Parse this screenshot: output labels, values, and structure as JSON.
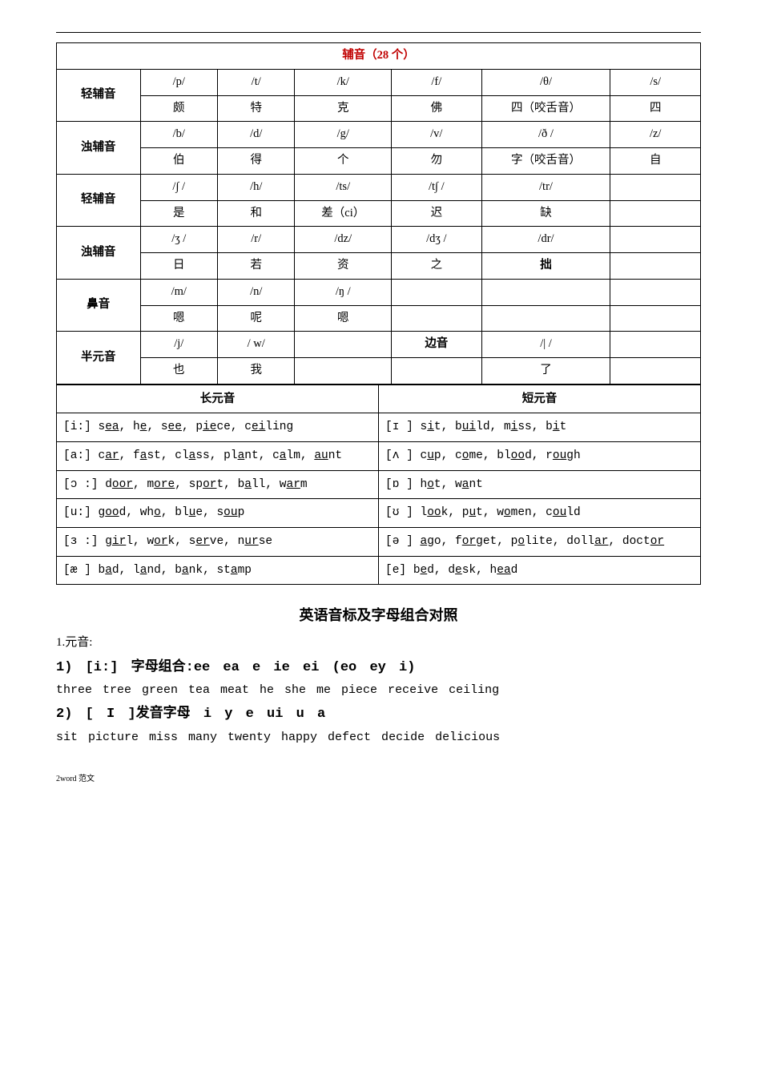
{
  "colors": {
    "text": "#000000",
    "accent": "#c00000",
    "border": "#000000",
    "background": "#ffffff"
  },
  "consonants": {
    "title": "辅音（28 个）",
    "rows": [
      {
        "label": "轻辅音",
        "ipa": [
          "/p/",
          "/t/",
          "/k/",
          "/f/",
          "/θ/",
          "/s/"
        ],
        "cn": [
          "颇",
          "特",
          "克",
          "佛",
          "四（咬舌音）",
          "四"
        ]
      },
      {
        "label": "浊辅音",
        "ipa": [
          "/b/",
          "/d/",
          "/g/",
          "/v/",
          "/ð /",
          "/z/"
        ],
        "cn": [
          "伯",
          "得",
          "个",
          "勿",
          "字（咬舌音）",
          "自"
        ]
      },
      {
        "label": "轻辅音",
        "ipa": [
          "/∫ /",
          "/h/",
          "/ts/",
          "/t∫ /",
          "/tr/",
          ""
        ],
        "cn": [
          "是",
          "和",
          "差（ci）",
          "迟",
          "缺",
          ""
        ]
      },
      {
        "label": "浊辅音",
        "ipa": [
          "/ʒ /",
          "/r/",
          "/dz/",
          "/dʒ /",
          "/dr/",
          ""
        ],
        "cn": [
          "日",
          "若",
          "资",
          "之",
          "拙",
          ""
        ],
        "bold5": true
      },
      {
        "label": "鼻音",
        "ipa": [
          "/m/",
          "/n/",
          "/ŋ /",
          "",
          "",
          ""
        ],
        "cn": [
          "嗯",
          "呢",
          "嗯",
          "",
          "",
          ""
        ]
      },
      {
        "label": "半元音",
        "ipa": [
          "/j/",
          "/ w/",
          "",
          "边音",
          "/| /",
          ""
        ],
        "cn": [
          "也",
          "我",
          "",
          "",
          "了",
          ""
        ],
        "bold4": true
      }
    ]
  },
  "vowels": {
    "long_header": "长元音",
    "short_header": "短元音",
    "pairs": [
      {
        "long_sym": "[i:]",
        "long_words": [
          {
            "pre": "s",
            "u": "ea",
            "post": ""
          },
          {
            "pre": "h",
            "u": "e",
            "post": ""
          },
          {
            "pre": "s",
            "u": "ee",
            "post": ""
          },
          {
            "pre": "p",
            "u": "ie",
            "post": "ce"
          },
          {
            "pre": "c",
            "u": "ei",
            "post": "ling"
          }
        ],
        "short_sym": "[ɪ ]",
        "short_words": [
          {
            "pre": "s",
            "u": "i",
            "post": "t"
          },
          {
            "pre": "b",
            "u": "ui",
            "post": "ld"
          },
          {
            "pre": "m",
            "u": "i",
            "post": "ss"
          },
          {
            "pre": "b",
            "u": "i",
            "post": "t"
          }
        ]
      },
      {
        "long_sym": "[a:]",
        "long_words": [
          {
            "pre": "c",
            "u": "ar",
            "post": ""
          },
          {
            "pre": "f",
            "u": "a",
            "post": "st"
          },
          {
            "pre": "cl",
            "u": "a",
            "post": "ss"
          },
          {
            "pre": "pl",
            "u": "a",
            "post": "nt"
          },
          {
            "pre": "c",
            "u": "a",
            "post": "lm"
          },
          {
            "pre": "",
            "u": "au",
            "post": "nt"
          }
        ],
        "short_sym": "[ʌ ]",
        "short_words": [
          {
            "pre": "c",
            "u": "u",
            "post": "p"
          },
          {
            "pre": "c",
            "u": "o",
            "post": "me"
          },
          {
            "pre": "bl",
            "u": "oo",
            "post": "d"
          },
          {
            "pre": "r",
            "u": "ou",
            "post": "gh"
          }
        ]
      },
      {
        "long_sym": "[ɔ :]",
        "long_words": [
          {
            "pre": "d",
            "u": "oor",
            "post": ""
          },
          {
            "pre": "m",
            "u": "ore",
            "post": ""
          },
          {
            "pre": "sp",
            "u": "or",
            "post": "t"
          },
          {
            "pre": "b",
            "u": "a",
            "post": "ll"
          },
          {
            "pre": "w",
            "u": "ar",
            "post": "m"
          }
        ],
        "short_sym": "[ɒ ]",
        "short_words": [
          {
            "pre": "h",
            "u": "o",
            "post": "t"
          },
          {
            "pre": "w",
            "u": "a",
            "post": "nt"
          }
        ]
      },
      {
        "long_sym": "[u:]",
        "long_words": [
          {
            "pre": "g",
            "u": "oo",
            "post": "d"
          },
          {
            "pre": "wh",
            "u": "o",
            "post": ""
          },
          {
            "pre": "bl",
            "u": "u",
            "post": "e"
          },
          {
            "pre": "s",
            "u": "ou",
            "post": "p"
          }
        ],
        "short_sym": "[ʊ ]",
        "short_words": [
          {
            "pre": "l",
            "u": "oo",
            "post": "k"
          },
          {
            "pre": "p",
            "u": "u",
            "post": "t"
          },
          {
            "pre": "w",
            "u": "o",
            "post": "men"
          },
          {
            "pre": "c",
            "u": "ou",
            "post": "ld"
          }
        ]
      },
      {
        "long_sym": "[ɜ :]",
        "long_words": [
          {
            "pre": "g",
            "u": "ir",
            "post": "l"
          },
          {
            "pre": "w",
            "u": "or",
            "post": "k"
          },
          {
            "pre": "s",
            "u": "er",
            "post": "ve"
          },
          {
            "pre": "n",
            "u": "ur",
            "post": "se"
          }
        ],
        "short_sym": "[ə ]",
        "short_words": [
          {
            "pre": "",
            "u": "a",
            "post": "go"
          },
          {
            "pre": "f",
            "u": "or",
            "post": "get"
          },
          {
            "pre": "p",
            "u": "o",
            "post": "lite"
          },
          {
            "pre": "doll",
            "u": "ar",
            "post": ""
          },
          {
            "pre": "doct",
            "u": "or",
            "post": ""
          }
        ]
      },
      {
        "long_sym": "[æ ]",
        "long_words": [
          {
            "pre": "b",
            "u": "a",
            "post": "d"
          },
          {
            "pre": "l",
            "u": "a",
            "post": "nd"
          },
          {
            "pre": "b",
            "u": "a",
            "post": "nk"
          },
          {
            "pre": "st",
            "u": "a",
            "post": "mp"
          }
        ],
        "short_sym": "[e]",
        "short_words": [
          {
            "pre": "b",
            "u": "e",
            "post": "d"
          },
          {
            "pre": "d",
            "u": "e",
            "post": "sk"
          },
          {
            "pre": "h",
            "u": "ea",
            "post": "d"
          }
        ]
      }
    ]
  },
  "section2": {
    "title": "英语音标及字母组合对照",
    "intro": "1.元音:",
    "item1_head": "1) [i:] 字母组合:ee  ea  e  ie  ei   (eo ey i)",
    "item1_body": "three  tree  green  tea  meat  he  she  me piece   receive ceiling",
    "item2_head": "2) [ I ]发音字母  i y e ui u a",
    "item2_body": "sit  picture  miss  many  twenty  happy  defect  decide  delicious"
  },
  "footer": "2word 范文"
}
